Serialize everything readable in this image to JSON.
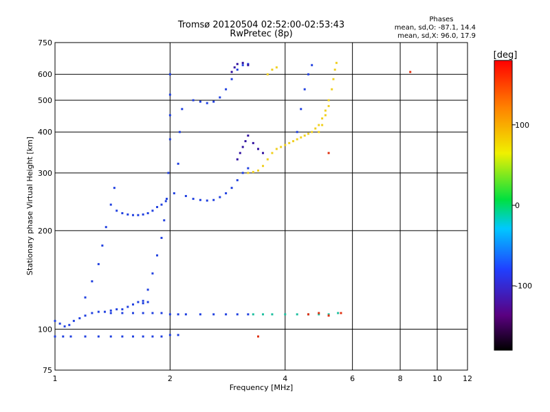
{
  "chart_data": {
    "type": "scatter",
    "title": "Tromsø 20120504 02:52:00-02:53:43",
    "subtitle": "RwPretec (8p)",
    "phases": {
      "title": "Phases",
      "line1": "mean, sd,O: -87.1, 14.4",
      "line2": "mean, sd,X:  96.0, 17.9"
    },
    "xlabel": "Frequency [MHz]",
    "ylabel": "Stationary phase Virtual Height [km]",
    "x_scale": "log",
    "y_scale": "log",
    "xlim": [
      1,
      12
    ],
    "ylim": [
      75,
      750
    ],
    "x_ticks": [
      1,
      2,
      4,
      6,
      8,
      10,
      12
    ],
    "y_ticks": [
      75,
      100,
      200,
      300,
      400,
      500,
      600,
      750
    ],
    "grid": true,
    "colorbar": {
      "label": "[deg]",
      "range": [
        -180,
        180
      ],
      "ticks": [
        100,
        0,
        -100
      ],
      "colormap": "rainbow (black → purple → blue → cyan → green → yellow → red)"
    },
    "series": [
      {
        "mode": "O",
        "phase": -100,
        "color": "#2040e0",
        "points": [
          [
            1.0,
            106
          ],
          [
            1.03,
            104
          ],
          [
            1.06,
            102
          ],
          [
            1.09,
            103
          ],
          [
            1.12,
            106
          ],
          [
            1.16,
            108
          ],
          [
            1.2,
            110
          ],
          [
            1.25,
            112
          ],
          [
            1.3,
            113
          ],
          [
            1.35,
            113
          ],
          [
            1.4,
            114
          ],
          [
            1.45,
            115
          ],
          [
            1.5,
            115
          ],
          [
            1.55,
            117
          ],
          [
            1.6,
            119
          ],
          [
            1.65,
            121
          ],
          [
            1.7,
            122
          ],
          [
            1.75,
            121
          ],
          [
            1.4,
            112
          ],
          [
            1.5,
            112
          ],
          [
            1.6,
            112
          ],
          [
            1.7,
            112
          ],
          [
            1.8,
            112
          ],
          [
            1.9,
            112
          ],
          [
            2.0,
            111
          ],
          [
            2.1,
            111
          ],
          [
            2.2,
            111
          ],
          [
            2.4,
            111
          ],
          [
            2.6,
            111
          ],
          [
            2.8,
            111
          ],
          [
            3.0,
            111
          ],
          [
            3.2,
            111
          ],
          [
            1.0,
            95
          ],
          [
            1.05,
            95
          ],
          [
            1.1,
            95
          ],
          [
            1.2,
            95
          ],
          [
            1.3,
            95
          ],
          [
            1.4,
            95
          ],
          [
            1.5,
            95
          ],
          [
            1.6,
            95
          ],
          [
            1.7,
            95
          ],
          [
            1.8,
            95
          ],
          [
            1.9,
            95
          ],
          [
            2.0,
            96
          ],
          [
            2.1,
            96
          ],
          [
            1.2,
            125
          ],
          [
            1.25,
            140
          ],
          [
            1.3,
            158
          ],
          [
            1.33,
            180
          ],
          [
            1.36,
            205
          ],
          [
            1.4,
            240
          ],
          [
            1.43,
            270
          ],
          [
            1.45,
            230
          ],
          [
            1.5,
            226
          ],
          [
            1.55,
            224
          ],
          [
            1.6,
            223
          ],
          [
            1.65,
            223
          ],
          [
            1.7,
            224
          ],
          [
            1.75,
            226
          ],
          [
            1.8,
            230
          ],
          [
            1.85,
            236
          ],
          [
            1.9,
            240
          ],
          [
            1.95,
            246
          ],
          [
            1.7,
            120
          ],
          [
            1.75,
            132
          ],
          [
            1.8,
            148
          ],
          [
            1.85,
            168
          ],
          [
            1.9,
            190
          ],
          [
            1.93,
            215
          ],
          [
            1.96,
            250
          ],
          [
            1.98,
            300
          ],
          [
            2.0,
            380
          ],
          [
            2.0,
            450
          ],
          [
            2.0,
            520
          ],
          [
            2.0,
            600
          ],
          [
            2.05,
            260
          ],
          [
            2.1,
            320
          ],
          [
            2.12,
            400
          ],
          [
            2.15,
            470
          ],
          [
            2.2,
            255
          ],
          [
            2.3,
            250
          ],
          [
            2.4,
            248
          ],
          [
            2.5,
            247
          ],
          [
            2.6,
            248
          ],
          [
            2.7,
            253
          ],
          [
            2.8,
            260
          ],
          [
            2.9,
            270
          ],
          [
            3.0,
            285
          ],
          [
            3.1,
            300
          ],
          [
            3.2,
            310
          ],
          [
            2.3,
            500
          ],
          [
            2.4,
            495
          ],
          [
            2.5,
            490
          ],
          [
            2.6,
            495
          ],
          [
            2.7,
            510
          ],
          [
            2.8,
            540
          ],
          [
            2.9,
            580
          ],
          [
            3.0,
            620
          ],
          [
            3.1,
            640
          ],
          [
            3.2,
            645
          ],
          [
            4.3,
            400
          ],
          [
            4.4,
            470
          ],
          [
            4.5,
            540
          ],
          [
            4.6,
            600
          ],
          [
            4.7,
            640
          ]
        ]
      },
      {
        "mode": "O-dark",
        "phase": -150,
        "color": "#3010a0",
        "points": [
          [
            3.0,
            330
          ],
          [
            3.05,
            345
          ],
          [
            3.1,
            360
          ],
          [
            3.15,
            375
          ],
          [
            3.2,
            390
          ],
          [
            3.3,
            370
          ],
          [
            3.4,
            355
          ],
          [
            3.5,
            345
          ],
          [
            2.9,
            610
          ],
          [
            2.95,
            630
          ],
          [
            3.0,
            645
          ],
          [
            3.1,
            650
          ],
          [
            3.2,
            640
          ]
        ]
      },
      {
        "mode": "X",
        "phase": 96,
        "color": "#f0d020",
        "points": [
          [
            3.2,
            300
          ],
          [
            3.3,
            302
          ],
          [
            3.4,
            305
          ],
          [
            3.5,
            315
          ],
          [
            3.6,
            330
          ],
          [
            3.7,
            345
          ],
          [
            3.8,
            355
          ],
          [
            3.9,
            360
          ],
          [
            4.0,
            365
          ],
          [
            4.1,
            370
          ],
          [
            4.2,
            375
          ],
          [
            4.3,
            380
          ],
          [
            4.4,
            385
          ],
          [
            4.5,
            390
          ],
          [
            4.6,
            395
          ],
          [
            4.7,
            400
          ],
          [
            4.8,
            410
          ],
          [
            4.9,
            420
          ],
          [
            5.0,
            440
          ],
          [
            5.1,
            465
          ],
          [
            5.2,
            500
          ],
          [
            5.3,
            540
          ],
          [
            5.35,
            580
          ],
          [
            5.4,
            620
          ],
          [
            5.45,
            650
          ],
          [
            3.6,
            600
          ],
          [
            3.7,
            620
          ],
          [
            3.8,
            630
          ],
          [
            4.9,
            400
          ],
          [
            5.0,
            420
          ],
          [
            5.1,
            450
          ],
          [
            5.2,
            480
          ]
        ]
      },
      {
        "mode": "E-trace",
        "phase": 20,
        "color": "#20c0a0",
        "points": [
          [
            3.3,
            111
          ],
          [
            3.5,
            111
          ],
          [
            3.7,
            111
          ],
          [
            4.0,
            111
          ],
          [
            4.3,
            111
          ],
          [
            4.6,
            111
          ],
          [
            4.9,
            111
          ],
          [
            5.2,
            111
          ],
          [
            5.5,
            112
          ]
        ]
      },
      {
        "mode": "scatter-noise",
        "phase": 170,
        "color": "#e03010",
        "points": [
          [
            4.6,
            111
          ],
          [
            4.9,
            112
          ],
          [
            5.2,
            110
          ],
          [
            5.6,
            112
          ],
          [
            3.4,
            95
          ],
          [
            5.2,
            345
          ],
          [
            8.5,
            610
          ]
        ]
      }
    ]
  }
}
